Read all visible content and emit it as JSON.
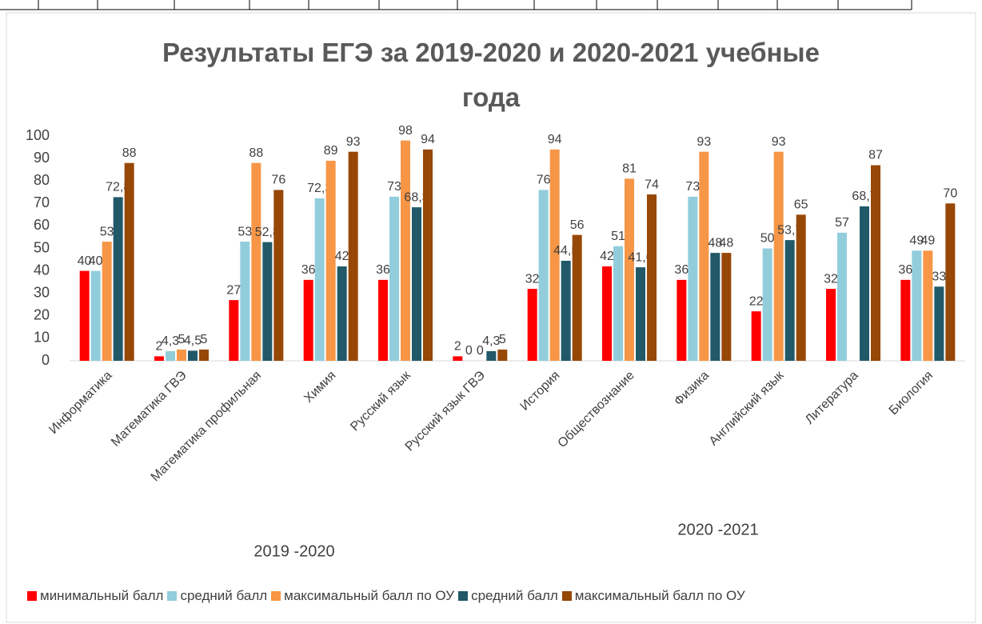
{
  "chart_data": {
    "type": "bar",
    "title": "Результаты ЕГЭ за 2019-2020 и 2020-2021 учебные года",
    "annotations": [
      "2019 -2020",
      "2020 -2021"
    ],
    "categories": [
      "Информатика",
      "Математика ГВЭ",
      "Математика профильная",
      "Химия",
      "Русский язык",
      "Русский язык ГВЭ",
      "История",
      "Обществознание",
      "Физика",
      "Английский язык",
      "Литература",
      "Биология"
    ],
    "series": [
      {
        "name": "минимальный балл",
        "color": "#ff0000",
        "values": [
          40,
          2,
          27,
          36,
          36,
          2,
          32,
          42,
          36,
          22,
          32,
          36
        ]
      },
      {
        "name": "средний балл",
        "color": "#92cddc",
        "values": [
          40,
          4.3,
          53,
          72.3,
          73,
          0,
          76,
          51,
          73,
          50,
          57,
          49
        ],
        "value_labels": [
          "40",
          "4,3",
          "53",
          "72,3",
          "73",
          "0",
          "76",
          "51",
          "73",
          "50",
          "57",
          "49"
        ]
      },
      {
        "name": "максимальный балл по ОУ",
        "color": "#f79646",
        "values": [
          53,
          5,
          88,
          89,
          98,
          0,
          94,
          81,
          93,
          93,
          null,
          49
        ]
      },
      {
        "name": "средний балл",
        "color": "#215968",
        "values": [
          72.8,
          4.5,
          52.8,
          42,
          68.3,
          4.3,
          44.5,
          41.6,
          48,
          53.7,
          68.7,
          33
        ],
        "value_labels": [
          "72,8",
          "4,5",
          "52,8",
          "42",
          "68,3",
          "4,3",
          "44,5",
          "41,6",
          "48",
          "53,7",
          "68,7",
          "33"
        ]
      },
      {
        "name": "максимальный балл по ОУ",
        "color": "#974706",
        "values": [
          88,
          5,
          76,
          93,
          94,
          5,
          56,
          74,
          48,
          65,
          87,
          70
        ]
      }
    ],
    "ylim": [
      0,
      100
    ],
    "yticks": [
      0,
      10,
      20,
      30,
      40,
      50,
      60,
      70,
      80,
      90,
      100
    ],
    "grid": false,
    "legend": "bottom"
  }
}
